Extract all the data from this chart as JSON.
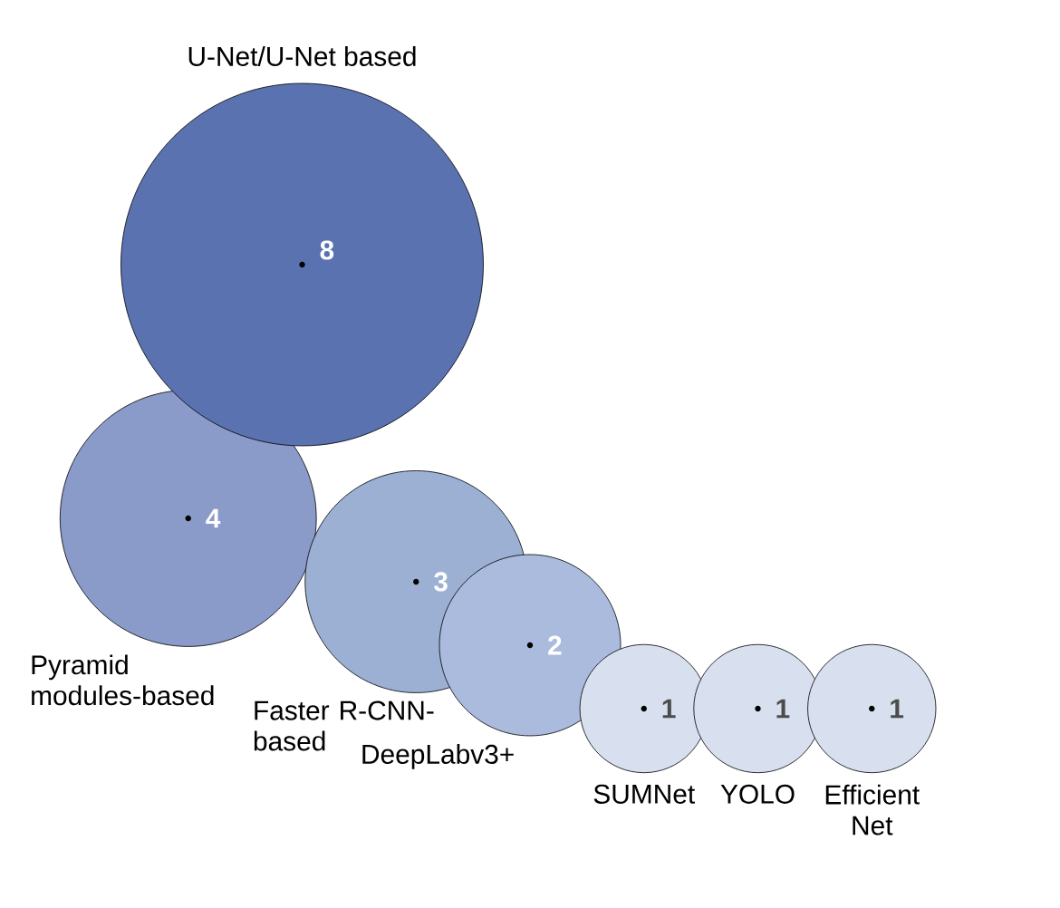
{
  "chart_data": {
    "type": "other",
    "categories": [
      "Pyramid modules-based",
      "U-Net/U-Net based",
      "Faster R-CNN-based",
      "DeepLabv3+",
      "SUMNet",
      "YOLO",
      "Efficient Net"
    ],
    "values": [
      4,
      8,
      3,
      2,
      1,
      1,
      1
    ],
    "colors": [
      "#8a9bc9",
      "#5a72b0",
      "#9cb0d4",
      "#aabbdd",
      "#d8e0ef",
      "#d8e0ef",
      "#d8e0ef"
    ],
    "data_labels": true
  }
}
